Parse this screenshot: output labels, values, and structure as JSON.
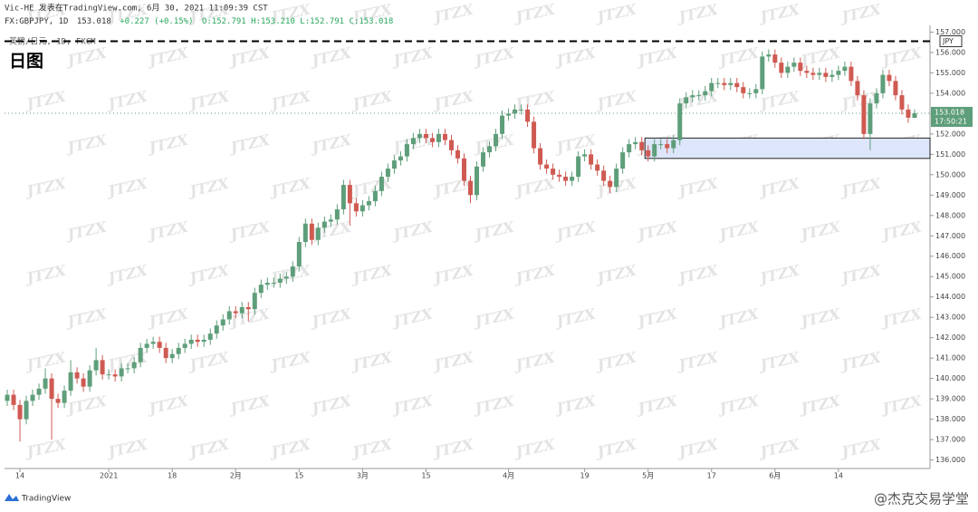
{
  "header": {
    "author_line": "Vic-HE 发表在TradingView.com, 6月 30, 2021 11:09:39 CST",
    "symbol": "FX:GBPJPY, 1D",
    "price": "153.018",
    "change": "+0.227 (+0.15%)",
    "ohlc_line": "O:152.791 H:153.210 L:152.791 C:153.018"
  },
  "chart_data": {
    "type": "candlestick",
    "title": "英镑/日元, 1D, FXCM",
    "subtitle": "日图",
    "open": [
      138.9,
      139.2,
      138.7,
      138.0,
      138.9,
      139.2,
      139.5,
      140.0,
      139.0,
      138.8,
      139.4,
      140.3,
      140.0,
      139.6,
      140.4,
      140.9,
      140.2,
      140.2,
      140.1,
      140.5,
      140.5,
      140.8,
      141.5,
      141.7,
      141.8,
      141.5,
      141.0,
      141.2,
      141.5,
      141.7,
      141.9,
      141.8,
      141.9,
      142.2,
      142.6,
      142.9,
      143.3,
      143.2,
      143.5,
      143.4,
      144.2,
      144.6,
      144.7,
      144.7,
      144.9,
      145.0,
      145.5,
      146.7,
      147.6,
      146.8,
      147.4,
      147.7,
      147.8,
      148.3,
      149.5,
      148.6,
      148.2,
      148.5,
      148.7,
      149.2,
      149.9,
      150.3,
      150.7,
      150.9,
      151.5,
      151.8,
      152.0,
      151.8,
      151.6,
      152.0,
      151.7,
      151.2,
      150.8,
      149.7,
      149.0,
      150.4,
      151.1,
      151.4,
      152.0,
      152.9,
      153.0,
      153.2,
      153.2,
      152.6,
      151.3,
      150.5,
      150.3,
      150.0,
      149.9,
      149.7,
      149.9,
      150.9,
      151.0,
      150.5,
      150.2,
      149.7,
      149.4,
      150.3,
      151.1,
      151.5,
      151.6,
      151.2,
      150.9,
      151.5,
      151.5,
      151.3,
      151.7,
      153.5,
      153.8,
      153.9,
      153.9,
      154.1,
      154.5,
      154.5,
      154.4,
      154.5,
      154.3,
      154.0,
      154.0,
      154.2,
      155.8,
      155.9,
      155.5,
      155.0,
      155.3,
      155.5,
      155.1,
      155.0,
      154.9,
      155.0,
      154.8,
      154.9,
      155.1,
      155.3,
      154.6,
      153.9,
      152.0,
      153.5,
      154.0,
      154.9,
      154.6,
      153.9,
      153.2,
      152.791
    ],
    "high": [
      139.45,
      139.45,
      138.95,
      139.15,
      139.45,
      139.75,
      140.5,
      140.25,
      139.25,
      139.65,
      140.9,
      140.55,
      140.25,
      140.65,
      141.5,
      141.15,
      140.45,
      140.45,
      140.75,
      140.75,
      141.05,
      141.75,
      141.95,
      142.05,
      142.05,
      141.75,
      141.45,
      141.75,
      141.95,
      142.15,
      142.15,
      142.15,
      142.45,
      142.85,
      143.15,
      143.55,
      143.55,
      143.75,
      143.75,
      144.45,
      144.85,
      144.95,
      144.95,
      145.15,
      145.25,
      145.75,
      146.95,
      147.85,
      147.85,
      147.65,
      147.95,
      148.05,
      148.55,
      149.75,
      149.75,
      148.85,
      148.75,
      148.95,
      149.45,
      150.15,
      150.55,
      150.95,
      151.15,
      151.75,
      152.05,
      152.25,
      152.25,
      152.05,
      152.25,
      152.25,
      151.95,
      151.45,
      151.05,
      149.95,
      150.65,
      151.35,
      151.65,
      152.25,
      153.15,
      153.25,
      153.45,
      153.45,
      153.45,
      152.85,
      151.55,
      150.75,
      150.55,
      150.25,
      150.15,
      150.15,
      151.15,
      151.25,
      151.25,
      150.75,
      150.45,
      149.95,
      150.55,
      151.35,
      151.75,
      151.85,
      151.85,
      151.45,
      151.75,
      151.75,
      151.75,
      151.95,
      153.75,
      154.05,
      154.15,
      154.15,
      154.35,
      154.75,
      154.75,
      154.75,
      154.75,
      154.75,
      154.55,
      154.25,
      154.45,
      156.05,
      156.15,
      156.15,
      155.75,
      155.55,
      155.75,
      155.75,
      155.35,
      155.25,
      155.25,
      155.25,
      155.15,
      155.35,
      155.55,
      155.55,
      154.85,
      154.15,
      153.75,
      154.25,
      155.15,
      155.15,
      154.85,
      154.15,
      153.45,
      153.21
    ],
    "low": [
      138.65,
      138.45,
      136.9,
      137.75,
      138.65,
      138.95,
      139.25,
      137.0,
      138.55,
      138.55,
      139.15,
      139.75,
      139.35,
      139.35,
      140.15,
      139.95,
      139.95,
      139.85,
      139.85,
      140.25,
      140.25,
      140.55,
      141.25,
      141.45,
      141.25,
      140.75,
      140.75,
      140.95,
      141.25,
      141.45,
      141.55,
      141.55,
      141.65,
      141.95,
      142.35,
      142.65,
      142.95,
      142.95,
      142.8,
      143.15,
      143.95,
      144.35,
      144.45,
      144.45,
      144.65,
      144.75,
      145.25,
      146.45,
      146.55,
      146.55,
      147.15,
      147.45,
      147.55,
      148.05,
      147.5,
      147.95,
      147.95,
      148.25,
      148.45,
      148.95,
      149.65,
      150.05,
      150.45,
      150.65,
      151.25,
      151.55,
      151.55,
      151.35,
      151.35,
      151.45,
      150.95,
      150.55,
      149.45,
      148.6,
      148.75,
      150.15,
      150.85,
      151.15,
      151.75,
      152.65,
      152.75,
      152.95,
      152.35,
      151.05,
      150.25,
      150.05,
      149.75,
      149.65,
      149.45,
      149.45,
      149.65,
      150.65,
      150.25,
      149.95,
      149.45,
      149.1,
      149.15,
      150.05,
      150.85,
      151.25,
      150.95,
      150.65,
      150.65,
      151.25,
      151.05,
      151.05,
      151.45,
      153.25,
      153.55,
      153.65,
      153.65,
      153.85,
      154.25,
      154.15,
      154.15,
      154.05,
      153.75,
      153.75,
      153.75,
      153.95,
      155.55,
      155.25,
      154.75,
      154.75,
      155.05,
      154.85,
      154.75,
      154.65,
      154.65,
      154.55,
      154.55,
      154.65,
      154.85,
      154.35,
      153.65,
      151.75,
      151.2,
      153.25,
      153.75,
      154.35,
      153.65,
      152.95,
      152.55,
      152.791
    ],
    "close": [
      139.2,
      138.7,
      138.0,
      138.9,
      139.2,
      139.5,
      140.0,
      139.0,
      138.8,
      139.4,
      140.3,
      140.0,
      139.6,
      140.4,
      140.9,
      140.2,
      140.2,
      140.1,
      140.5,
      140.5,
      140.8,
      141.5,
      141.7,
      141.8,
      141.5,
      141.0,
      141.2,
      141.5,
      141.7,
      141.9,
      141.8,
      141.9,
      142.2,
      142.6,
      142.9,
      143.3,
      143.2,
      143.5,
      143.4,
      144.2,
      144.6,
      144.7,
      144.7,
      144.9,
      145.0,
      145.5,
      146.7,
      147.6,
      146.8,
      147.4,
      147.7,
      147.8,
      148.3,
      149.5,
      148.6,
      148.2,
      148.5,
      148.7,
      149.2,
      149.9,
      150.3,
      150.7,
      150.9,
      151.5,
      151.8,
      152.0,
      151.8,
      151.6,
      152.0,
      151.7,
      151.2,
      150.8,
      149.7,
      149.0,
      150.4,
      151.1,
      151.4,
      152.0,
      152.9,
      153.0,
      153.2,
      153.2,
      152.6,
      151.3,
      150.5,
      150.3,
      150.0,
      149.9,
      149.7,
      149.9,
      150.9,
      151.0,
      150.5,
      150.2,
      149.7,
      149.4,
      150.3,
      151.1,
      151.5,
      151.6,
      151.2,
      150.9,
      151.5,
      151.5,
      151.3,
      151.7,
      153.5,
      153.8,
      153.9,
      153.9,
      154.1,
      154.5,
      154.5,
      154.4,
      154.5,
      154.3,
      154.0,
      154.0,
      154.2,
      155.8,
      155.9,
      155.5,
      155.0,
      155.3,
      155.5,
      155.1,
      155.0,
      154.9,
      155.0,
      154.8,
      154.9,
      155.1,
      155.3,
      154.6,
      153.9,
      152.0,
      153.5,
      154.0,
      154.9,
      154.6,
      153.9,
      153.2,
      152.8,
      153.018
    ],
    "up_color": "#5e9e7a",
    "down_color": "#cf5a52",
    "xlim": [
      -0.43,
      145.43
    ],
    "xticks": [
      {
        "value": 2,
        "label": "14"
      },
      {
        "value": 16,
        "label": "2021"
      },
      {
        "value": 26,
        "label": "18"
      },
      {
        "value": 36,
        "label": "2月"
      },
      {
        "value": 46,
        "label": "15"
      },
      {
        "value": 56,
        "label": "3月"
      },
      {
        "value": 66,
        "label": "15"
      },
      {
        "value": 79,
        "label": "4月"
      },
      {
        "value": 91,
        "label": "19"
      },
      {
        "value": 101,
        "label": "5月"
      },
      {
        "value": 111,
        "label": "17"
      },
      {
        "value": 121,
        "label": "6月"
      },
      {
        "value": 131,
        "label": "14"
      }
    ],
    "ylim": [
      135.67,
      157.33
    ],
    "yticks": [
      {
        "value": 136,
        "label": "136.000"
      },
      {
        "value": 137,
        "label": "137.000"
      },
      {
        "value": 138,
        "label": "138.000"
      },
      {
        "value": 139,
        "label": "139.000"
      },
      {
        "value": 140,
        "label": "140.000"
      },
      {
        "value": 141,
        "label": "141.000"
      },
      {
        "value": 142,
        "label": "142.000"
      },
      {
        "value": 143,
        "label": "143.000"
      },
      {
        "value": 144,
        "label": "144.000"
      },
      {
        "value": 145,
        "label": "145.000"
      },
      {
        "value": 146,
        "label": "146.000"
      },
      {
        "value": 147,
        "label": "147.000"
      },
      {
        "value": 148,
        "label": "148.000"
      },
      {
        "value": 149,
        "label": "149.000"
      },
      {
        "value": 150,
        "label": "150.000"
      },
      {
        "value": 151,
        "label": "151.000"
      },
      {
        "value": 152,
        "label": "152.000"
      },
      {
        "value": 153,
        "label": "153.000"
      },
      {
        "value": 154,
        "label": "154.000"
      },
      {
        "value": 155,
        "label": "155.000"
      },
      {
        "value": 156,
        "label": "156.000"
      },
      {
        "value": 157,
        "label": "157.000"
      }
    ],
    "last_price": 153.018,
    "countdown": "17:50:21",
    "currency": "JPY",
    "resistance_line": 156.55,
    "zone": [
      150.8,
      151.8
    ]
  },
  "watermark": "JTZX",
  "logo": "TradingView",
  "credit": "@杰克交易学堂"
}
